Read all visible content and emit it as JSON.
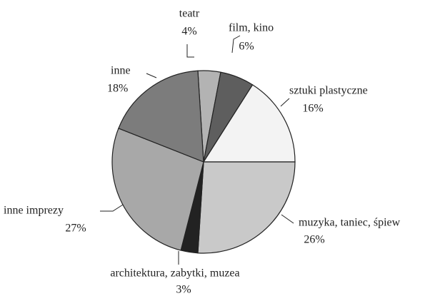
{
  "chart_data": {
    "type": "pie",
    "categories": [
      "teatr",
      "film, kino",
      "sztuki plastyczne",
      "muzyka, taniec, śpiew",
      "architektura, zabytki, muzea",
      "inne imprezy",
      "inne"
    ],
    "values": [
      4,
      6,
      16,
      26,
      3,
      27,
      18
    ],
    "value_labels": [
      "4%",
      "6%",
      "16%",
      "26%",
      "3%",
      "27%",
      "18%"
    ],
    "colors": [
      "#b3b3b3",
      "#5e5e5e",
      "#f3f3f3",
      "#c9c9c9",
      "#222222",
      "#a8a8a8",
      "#7c7c7c"
    ]
  }
}
